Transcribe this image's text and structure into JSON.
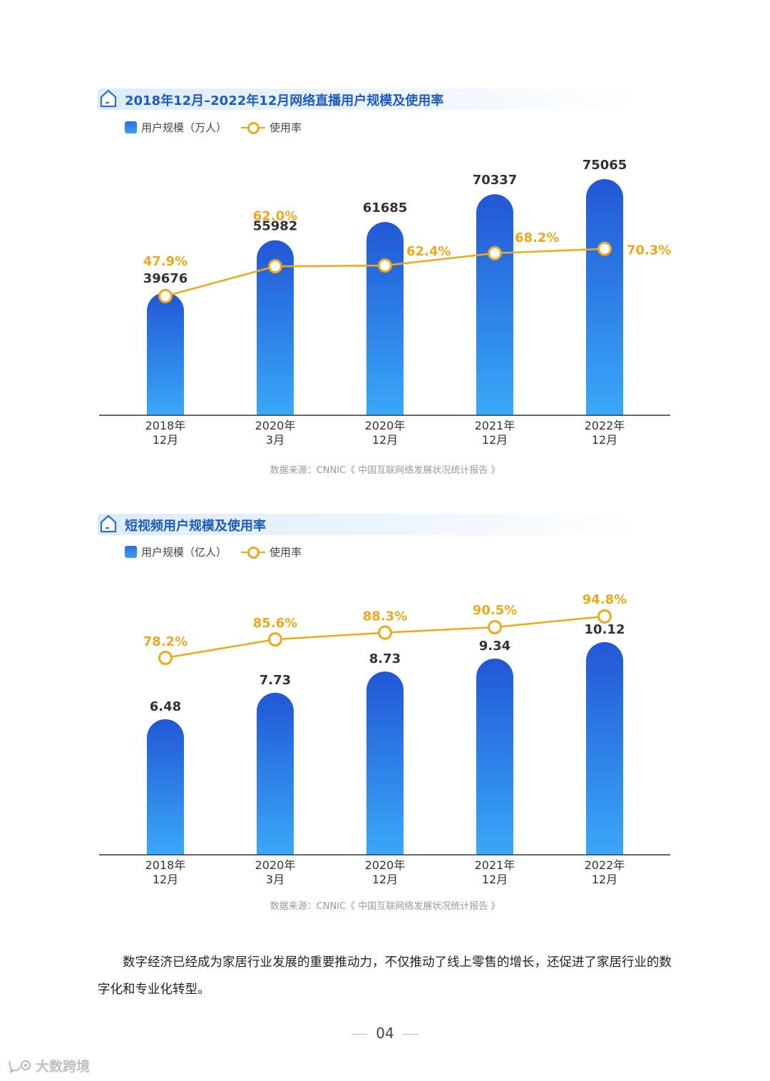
{
  "chart_data": [
    {
      "type": "bar",
      "title": "2018年12月–2022年12月网络直播用户规模及使用率",
      "categories": [
        "2018年\n12月",
        "2020年\n3月",
        "2020年\n12月",
        "2021年\n12月",
        "2022年\n12月"
      ],
      "series": [
        {
          "name": "用户规模（万人）",
          "type": "bar",
          "values": [
            39676,
            55982,
            61685,
            70337,
            75065
          ],
          "labels": [
            "39676",
            "55982",
            "61685",
            "70337",
            "75065"
          ]
        },
        {
          "name": "使用率",
          "type": "line",
          "values": [
            47.9,
            62.0,
            62.4,
            68.2,
            70.3
          ],
          "labels": [
            "47.9%",
            "62.0%",
            "62.4%",
            "68.2%",
            "70.3%"
          ]
        }
      ],
      "source": "数据来源：CNNIC《 中国互联网络发展状况统计报告 》",
      "legend_position": "top-left",
      "grid": false
    },
    {
      "type": "bar",
      "title": "短视频用户规模及使用率",
      "categories": [
        "2018年\n12月",
        "2020年\n3月",
        "2020年\n12月",
        "2021年\n12月",
        "2022年\n12月"
      ],
      "series": [
        {
          "name": "用户规模（亿人）",
          "type": "bar",
          "values": [
            6.48,
            7.73,
            8.73,
            9.34,
            10.12
          ],
          "labels": [
            "6.48",
            "7.73",
            "8.73",
            "9.34",
            "10.12"
          ]
        },
        {
          "name": "使用率",
          "type": "line",
          "values": [
            78.2,
            85.6,
            88.3,
            90.5,
            94.8
          ],
          "labels": [
            "78.2%",
            "85.6%",
            "88.3%",
            "90.5%",
            "94.8%"
          ]
        }
      ],
      "source": "数据来源：CNNIC《 中国互联网络发展状况统计报告 》",
      "legend_position": "top-left",
      "grid": false
    }
  ],
  "colors": {
    "bar_top": "#2257d6",
    "bar_bottom": "#3aa8f8",
    "line": "#f0a81a",
    "title": "#1f5bc7"
  },
  "icons": {
    "section": "house-outline-icon",
    "watermark": "speech-bubble-logo-icon"
  },
  "paragraph": "数字经济已经成为家居行业发展的重要推动力，不仅推动了线上零售的增长，还促进了家居行业的数字化和专业化转型。",
  "page_number": "04",
  "watermark": "大数跨境"
}
